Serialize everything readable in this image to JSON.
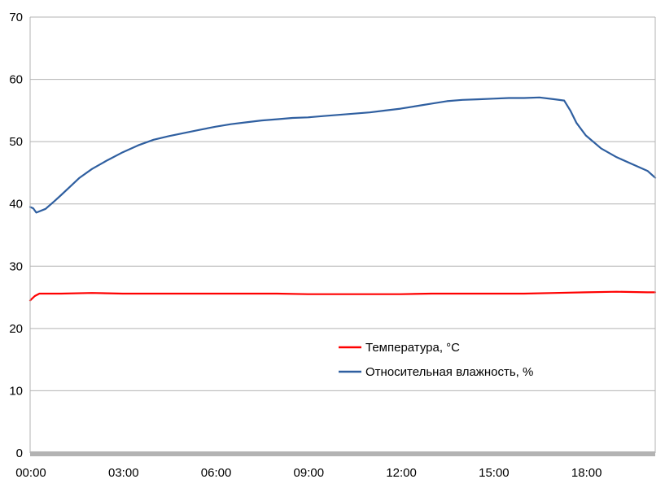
{
  "chart_data": {
    "type": "line",
    "x_tick_labels": [
      "00:00",
      "03:00",
      "06:00",
      "09:00",
      "12:00",
      "15:00",
      "18:00"
    ],
    "xlim_hours": [
      0,
      20.25
    ],
    "y_tick_labels": [
      "0",
      "10",
      "20",
      "30",
      "40",
      "50",
      "60",
      "70"
    ],
    "ylim": [
      0,
      70
    ],
    "grid": "horizontal",
    "legend_position": "inside-lower-center",
    "series": [
      {
        "name": "Температура, °С",
        "color": "#ff0000",
        "points": [
          [
            0,
            24.5
          ],
          [
            0.15,
            25.2
          ],
          [
            0.3,
            25.6
          ],
          [
            0.5,
            25.6
          ],
          [
            1,
            25.6
          ],
          [
            2,
            25.7
          ],
          [
            3,
            25.6
          ],
          [
            4,
            25.6
          ],
          [
            5,
            25.6
          ],
          [
            6,
            25.6
          ],
          [
            7,
            25.6
          ],
          [
            8,
            25.6
          ],
          [
            9,
            25.5
          ],
          [
            10,
            25.5
          ],
          [
            11,
            25.5
          ],
          [
            12,
            25.5
          ],
          [
            13,
            25.6
          ],
          [
            14,
            25.6
          ],
          [
            15,
            25.6
          ],
          [
            16,
            25.6
          ],
          [
            17,
            25.7
          ],
          [
            18,
            25.8
          ],
          [
            19,
            25.9
          ],
          [
            20,
            25.8
          ],
          [
            20.25,
            25.8
          ]
        ]
      },
      {
        "name": "Относительная влажность, %",
        "color": "#2f5fa0",
        "points": [
          [
            0,
            39.5
          ],
          [
            0.1,
            39.3
          ],
          [
            0.2,
            38.6
          ],
          [
            0.5,
            39.2
          ],
          [
            0.8,
            40.5
          ],
          [
            1,
            41.4
          ],
          [
            1.3,
            42.8
          ],
          [
            1.6,
            44.2
          ],
          [
            2,
            45.6
          ],
          [
            2.5,
            47.0
          ],
          [
            3,
            48.3
          ],
          [
            3.5,
            49.4
          ],
          [
            4,
            50.3
          ],
          [
            4.5,
            50.9
          ],
          [
            5,
            51.4
          ],
          [
            5.5,
            51.9
          ],
          [
            6,
            52.4
          ],
          [
            6.5,
            52.8
          ],
          [
            7,
            53.1
          ],
          [
            7.5,
            53.4
          ],
          [
            8,
            53.6
          ],
          [
            8.5,
            53.8
          ],
          [
            9,
            53.9
          ],
          [
            9.5,
            54.1
          ],
          [
            10,
            54.3
          ],
          [
            10.5,
            54.5
          ],
          [
            11,
            54.7
          ],
          [
            11.5,
            55.0
          ],
          [
            12,
            55.3
          ],
          [
            12.5,
            55.7
          ],
          [
            13,
            56.1
          ],
          [
            13.5,
            56.5
          ],
          [
            14,
            56.7
          ],
          [
            14.5,
            56.8
          ],
          [
            15,
            56.9
          ],
          [
            15.5,
            57.0
          ],
          [
            16,
            57.0
          ],
          [
            16.5,
            57.1
          ],
          [
            17,
            56.8
          ],
          [
            17.3,
            56.6
          ],
          [
            17.5,
            55.0
          ],
          [
            17.7,
            53.0
          ],
          [
            18,
            51.0
          ],
          [
            18.5,
            48.9
          ],
          [
            19,
            47.5
          ],
          [
            19.5,
            46.4
          ],
          [
            20,
            45.3
          ],
          [
            20.25,
            44.2
          ]
        ]
      }
    ]
  }
}
